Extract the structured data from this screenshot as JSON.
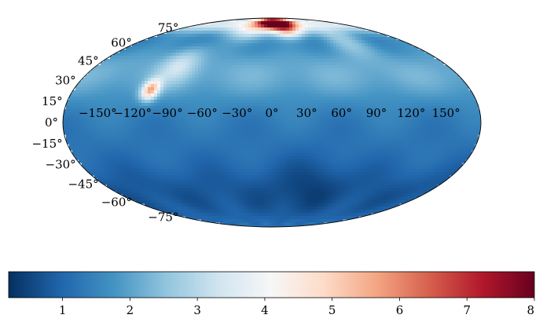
{
  "chart_data": {
    "type": "heatmap",
    "projection": "mollweide",
    "title": "",
    "xlabel": "",
    "ylabel": "",
    "grid": false,
    "longitude_tick_labels": [
      "−150°",
      "−120°",
      "−90°",
      "−60°",
      "−30°",
      "0°",
      "30°",
      "60°",
      "90°",
      "120°",
      "150°"
    ],
    "longitude_ticks": [
      -150,
      -120,
      -90,
      -60,
      -30,
      0,
      30,
      60,
      90,
      120,
      150
    ],
    "latitude_tick_labels": [
      "−75°",
      "−60°",
      "−45°",
      "−30°",
      "−15°",
      "0°",
      "15°",
      "30°",
      "45°",
      "60°",
      "75°"
    ],
    "latitude_ticks": [
      -75,
      -60,
      -45,
      -30,
      -15,
      0,
      15,
      30,
      45,
      60,
      75
    ],
    "colormap": "RdBu_r",
    "colormap_stops": [
      "#053061",
      "#2166ac",
      "#4393c3",
      "#92c5de",
      "#d1e5f0",
      "#f7f7f7",
      "#fddbc7",
      "#f4a582",
      "#d6604d",
      "#b2182b",
      "#67001f"
    ],
    "colorbar": {
      "vmin": 0.2,
      "vmax": 8,
      "tick_values": [
        1,
        2,
        3,
        4,
        5,
        6,
        7,
        8
      ],
      "tick_labels": [
        "1",
        "2",
        "3",
        "4",
        "5",
        "6",
        "7",
        "8"
      ],
      "placement": "bottom"
    },
    "field_features": [
      {
        "description": "background",
        "value": 1.3
      },
      {
        "lon": 0,
        "lat": 80,
        "value": 8.0
      },
      {
        "lon": 20,
        "lat": 72,
        "value": 6.0
      },
      {
        "lon": -30,
        "lat": 72,
        "value": 4.5
      },
      {
        "lon": -110,
        "lat": 22,
        "value": 5.2
      },
      {
        "lon": -80,
        "lat": 45,
        "value": 3.3
      },
      {
        "lon": 100,
        "lat": 65,
        "value": 3.5
      },
      {
        "lon": 40,
        "lat": -50,
        "value": 0.4
      },
      {
        "lon": -60,
        "lat": -40,
        "value": 0.5
      }
    ]
  }
}
